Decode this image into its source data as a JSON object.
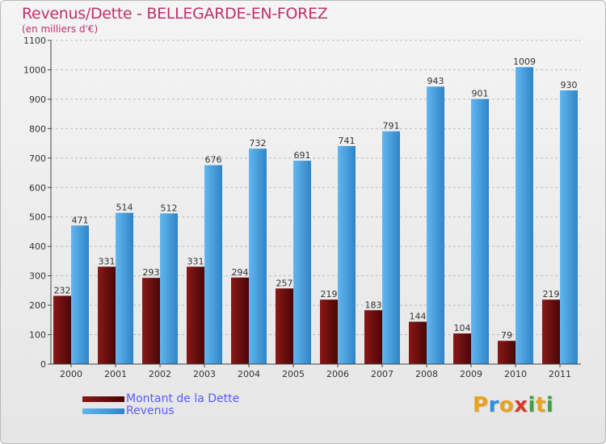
{
  "title": "Revenus/Dette - BELLEGARDE-EN-FOREZ",
  "subtitle": "(en milliers d'€)",
  "colors": {
    "text_accent": "#c0306a",
    "legend_text": "#5a5aff",
    "dette_light": "#8a1818",
    "dette_dark": "#4a0606",
    "revenus_light": "#63b6ee",
    "revenus_dark": "#2e85c8"
  },
  "chart_data": {
    "type": "bar",
    "categories": [
      "2000",
      "2001",
      "2002",
      "2003",
      "2004",
      "2005",
      "2006",
      "2007",
      "2008",
      "2009",
      "2010",
      "2011"
    ],
    "series": [
      {
        "name": "Montant de la Dette",
        "values": [
          232,
          331,
          293,
          331,
          294,
          257,
          219,
          183,
          144,
          104,
          79,
          219
        ]
      },
      {
        "name": "Revenus",
        "values": [
          471,
          514,
          512,
          676,
          732,
          691,
          741,
          791,
          943,
          901,
          1009,
          930
        ]
      }
    ],
    "ylim": [
      0,
      1100
    ],
    "yticks": [
      0,
      100,
      200,
      300,
      400,
      500,
      600,
      700,
      800,
      900,
      1000,
      1100
    ],
    "grid": true,
    "legend_position": "bottom-left"
  },
  "legend": [
    {
      "label": "Montant de la Dette"
    },
    {
      "label": "Revenus"
    }
  ],
  "brand": {
    "letters": [
      "P",
      "r",
      "o",
      "x",
      "i",
      "t",
      "i"
    ],
    "colors": [
      "#e8a21c",
      "#2f8fd8",
      "#e8a21c",
      "#d83a2a",
      "#3fa03f",
      "#e8a21c",
      "#3fa03f"
    ]
  }
}
